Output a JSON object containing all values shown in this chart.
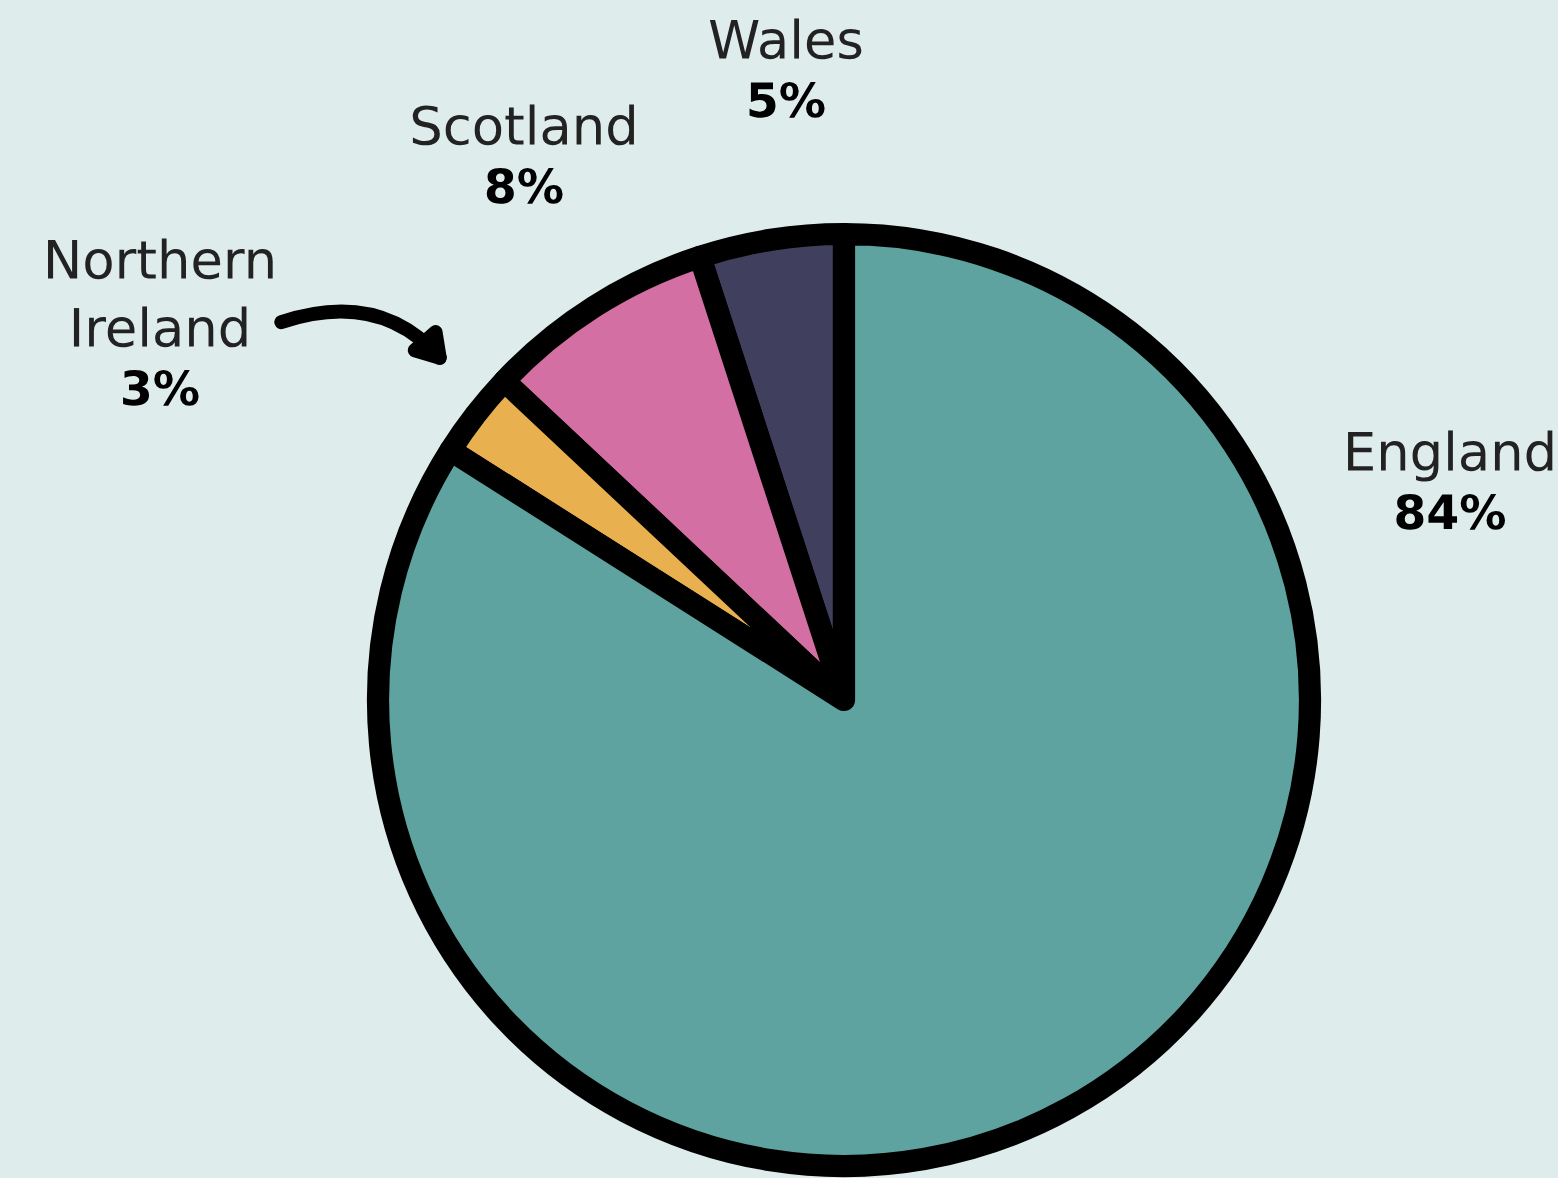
{
  "chart_data": {
    "type": "pie",
    "categories": [
      "Wales",
      "Scotland",
      "Northern Ireland",
      "England"
    ],
    "values": [
      5,
      8,
      3,
      84
    ],
    "colors": [
      "#40405e",
      "#d46fa3",
      "#e8b04f",
      "#5fa3a0"
    ],
    "value_labels": [
      "5%",
      "8%",
      "3%",
      "84%"
    ]
  }
}
